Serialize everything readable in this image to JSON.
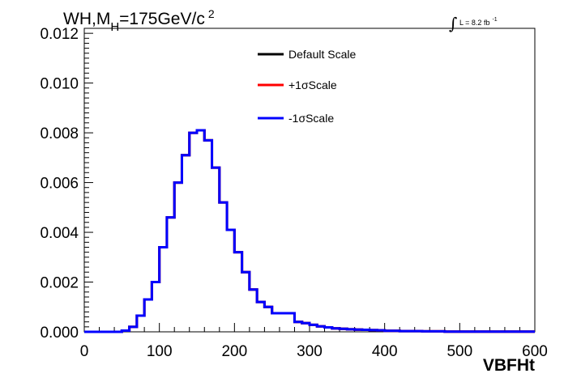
{
  "chart_data": {
    "type": "line",
    "title": {
      "main": "WH,M",
      "subscript": "H",
      "rest": "=175GeV/c",
      "superscript": "2"
    },
    "luminosity": {
      "integral": "∫",
      "text": "L = 8.2 fb",
      "superscript": "-1"
    },
    "xlabel": "VBFHt",
    "ylabel": "",
    "xlim": [
      0,
      600
    ],
    "ylim": [
      0,
      0.0122
    ],
    "xticks": [
      "0",
      "100",
      "200",
      "300",
      "400",
      "500",
      "600"
    ],
    "yticks": [
      "0.000",
      "0.002",
      "0.004",
      "0.006",
      "0.008",
      "0.010",
      "0.012"
    ],
    "xtick_values": [
      0,
      100,
      200,
      300,
      400,
      500,
      600
    ],
    "ytick_values": [
      0,
      0.002,
      0.004,
      0.006,
      0.008,
      0.01,
      0.012
    ],
    "grid": false,
    "legend_position": "top-center",
    "bin_edges": [
      0,
      10,
      20,
      30,
      40,
      50,
      60,
      70,
      80,
      90,
      100,
      110,
      120,
      130,
      140,
      150,
      160,
      170,
      180,
      190,
      200,
      210,
      220,
      230,
      240,
      250,
      260,
      270,
      280,
      290,
      300,
      310,
      320,
      330,
      340,
      350,
      360,
      370,
      380,
      390,
      400,
      410,
      420,
      430,
      440,
      450,
      460,
      470,
      480,
      490,
      500,
      510,
      520,
      530,
      540,
      550,
      560,
      570,
      580,
      590,
      600
    ],
    "series": [
      {
        "name": "Default Scale",
        "color": "#000000",
        "values": [
          0,
          0,
          0,
          0,
          0,
          5e-05,
          0.0002,
          0.00065,
          0.0013,
          0.002,
          0.0034,
          0.0046,
          0.006,
          0.0071,
          0.008,
          0.0081,
          0.0077,
          0.0066,
          0.0052,
          0.0041,
          0.0032,
          0.0024,
          0.0017,
          0.0012,
          0.001,
          0.00075,
          0.00075,
          0.00075,
          0.0004,
          0.00035,
          0.00028,
          0.00022,
          0.00018,
          0.00014,
          0.00012,
          0.0001,
          9e-05,
          8e-05,
          7e-05,
          6e-05,
          4e-05,
          4e-05,
          3e-05,
          3e-05,
          3e-05,
          2e-05,
          2e-05,
          2e-05,
          1e-05,
          1e-05,
          1e-05,
          1e-05,
          1e-05,
          1e-05,
          1e-05,
          1e-05,
          1e-05,
          1e-05,
          1e-05,
          1e-05
        ]
      },
      {
        "name": "+1σScale",
        "color": "#ff0000",
        "values": [
          0,
          0,
          0,
          0,
          0,
          5e-05,
          0.0002,
          0.00065,
          0.0013,
          0.002,
          0.0034,
          0.0046,
          0.006,
          0.0071,
          0.008,
          0.0081,
          0.0077,
          0.0066,
          0.0052,
          0.0041,
          0.0032,
          0.0024,
          0.0017,
          0.0012,
          0.001,
          0.00075,
          0.00075,
          0.00075,
          0.0004,
          0.00035,
          0.00028,
          0.00022,
          0.00018,
          0.00014,
          0.00012,
          0.0001,
          9e-05,
          8e-05,
          7e-05,
          6e-05,
          4e-05,
          4e-05,
          3e-05,
          3e-05,
          3e-05,
          2e-05,
          2e-05,
          2e-05,
          1e-05,
          1e-05,
          1e-05,
          1e-05,
          1e-05,
          1e-05,
          1e-05,
          1e-05,
          1e-05,
          1e-05,
          1e-05,
          1e-05
        ]
      },
      {
        "name": "-1σScale",
        "color": "#0000ff",
        "values": [
          0,
          0,
          0,
          0,
          0,
          5e-05,
          0.0002,
          0.00065,
          0.0013,
          0.002,
          0.0034,
          0.0046,
          0.006,
          0.0071,
          0.008,
          0.0081,
          0.0077,
          0.0066,
          0.0052,
          0.0041,
          0.0032,
          0.0024,
          0.0017,
          0.0012,
          0.001,
          0.00075,
          0.00075,
          0.00075,
          0.0004,
          0.00035,
          0.00028,
          0.00022,
          0.00018,
          0.00014,
          0.00012,
          0.0001,
          9e-05,
          8e-05,
          7e-05,
          6e-05,
          4e-05,
          4e-05,
          3e-05,
          3e-05,
          3e-05,
          2e-05,
          2e-05,
          2e-05,
          1e-05,
          1e-05,
          1e-05,
          1e-05,
          1e-05,
          1e-05,
          1e-05,
          1e-05,
          1e-05,
          1e-05,
          1e-05,
          1e-05
        ]
      }
    ]
  }
}
